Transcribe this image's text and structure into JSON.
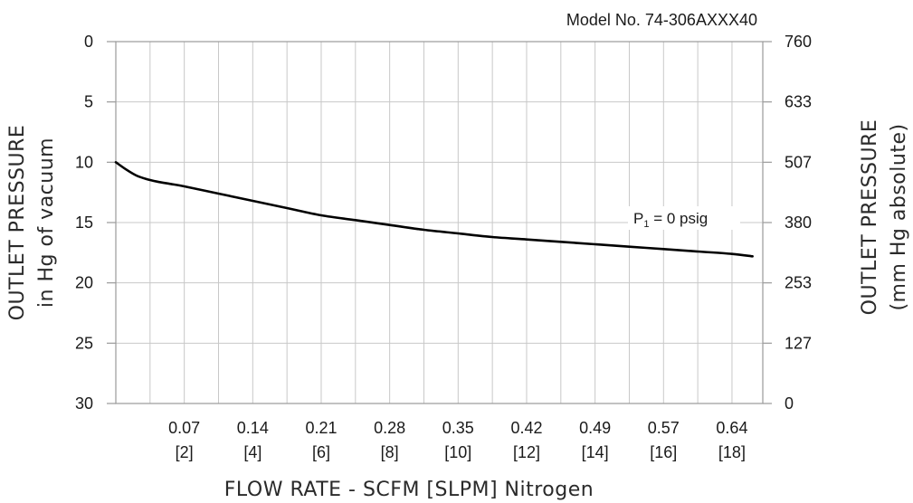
{
  "chart_data": {
    "type": "line",
    "model_label": "Model No. 74-306AXXX40",
    "xlabel": "FLOW RATE - SCFM [SLPM] Nitrogen",
    "ylabel_left": [
      "OUTLET PRESSURE",
      "in Hg of vacuum"
    ],
    "ylabel_right": [
      "OUTLET PRESSURE",
      "(mm Hg absolute)"
    ],
    "xlim": [
      0,
      18.9
    ],
    "ylim": [
      0,
      30
    ],
    "x_ticks": [
      {
        "value": 2,
        "label": "0.07",
        "sublabel": "[2]"
      },
      {
        "value": 4,
        "label": "0.14",
        "sublabel": "[4]"
      },
      {
        "value": 6,
        "label": "0.21",
        "sublabel": "[6]"
      },
      {
        "value": 8,
        "label": "0.28",
        "sublabel": "[8]"
      },
      {
        "value": 10,
        "label": "0.35",
        "sublabel": "[10]"
      },
      {
        "value": 12,
        "label": "0.42",
        "sublabel": "[12]"
      },
      {
        "value": 14,
        "label": "0.49",
        "sublabel": "[14]"
      },
      {
        "value": 16,
        "label": "0.57",
        "sublabel": "[16]"
      },
      {
        "value": 18,
        "label": "0.64",
        "sublabel": "[18]"
      }
    ],
    "x_gridlines": [
      1,
      2,
      3,
      4,
      5,
      6,
      7,
      8,
      9,
      10,
      11,
      12,
      13,
      14,
      15,
      16,
      17,
      18
    ],
    "y_ticks_left": [
      0,
      5,
      10,
      15,
      20,
      25,
      30
    ],
    "y_ticks_right": [
      "760",
      "633",
      "507",
      "380",
      "253",
      "127",
      "0"
    ],
    "grid": true,
    "series": [
      {
        "color": "#000000",
        "annotation_main": "P",
        "annotation_sub": "1",
        "annotation_rest": " = 0 psig",
        "x": [
          0,
          0.3,
          0.6,
          0.9,
          1.2,
          1.6,
          2.0,
          3.0,
          4.0,
          5.0,
          6.0,
          7.0,
          8.0,
          9.0,
          10.0,
          11.0,
          12.0,
          13.0,
          14.0,
          15.0,
          16.0,
          17.0,
          18.0,
          18.6
        ],
        "y": [
          10.0,
          10.6,
          11.1,
          11.4,
          11.6,
          11.8,
          12.0,
          12.6,
          13.2,
          13.8,
          14.4,
          14.8,
          15.2,
          15.6,
          15.9,
          16.2,
          16.4,
          16.6,
          16.8,
          17.0,
          17.2,
          17.4,
          17.6,
          17.8
        ]
      }
    ]
  }
}
